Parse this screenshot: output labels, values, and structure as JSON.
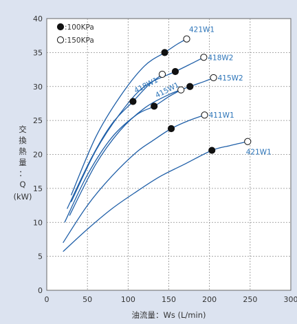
{
  "chart_data": {
    "type": "line",
    "title": "",
    "xlabel": "油流量：Ws (L/min)",
    "ylabel": [
      "交",
      "換",
      "熱",
      "量",
      "：",
      "Q",
      "(kW)"
    ],
    "xlim": [
      0,
      300
    ],
    "ylim": [
      0,
      40
    ],
    "xticks": [
      0,
      50,
      100,
      150,
      200,
      250,
      300
    ],
    "yticks": [
      0,
      5,
      10,
      15,
      20,
      25,
      30,
      35,
      40
    ],
    "grid": true,
    "legend": [
      {
        "marker": "filled",
        "label": ":100KPa"
      },
      {
        "marker": "open",
        "label": ":150KPa"
      }
    ],
    "series": [
      {
        "name": "421W1",
        "label_pos": "top",
        "points": [
          [
            30,
            14.0
          ],
          [
            60,
            22.5
          ],
          [
            90,
            28.5
          ],
          [
            120,
            33.0
          ],
          [
            145,
            35.0
          ],
          [
            160,
            36.2
          ],
          [
            172,
            37.0
          ]
        ],
        "markers": [
          [
            145,
            35.0,
            "filled"
          ],
          [
            172,
            37.0,
            "open"
          ]
        ]
      },
      {
        "name": "418W1",
        "label_pos": "mid",
        "points": [
          [
            25,
            12.0
          ],
          [
            55,
            19.5
          ],
          [
            80,
            24.5
          ],
          [
            106,
            27.8
          ],
          [
            125,
            30.2
          ],
          [
            142,
            31.8
          ]
        ],
        "markers": [
          [
            106,
            27.8,
            "filled"
          ],
          [
            142,
            31.8,
            "open"
          ]
        ]
      },
      {
        "name": "418W2",
        "label_pos": "end",
        "points": [
          [
            30,
            13.0
          ],
          [
            60,
            20.5
          ],
          [
            90,
            26.0
          ],
          [
            120,
            30.0
          ],
          [
            158,
            32.2
          ],
          [
            180,
            33.5
          ],
          [
            193,
            34.3
          ]
        ],
        "markers": [
          [
            158,
            32.2,
            "filled"
          ],
          [
            193,
            34.3,
            "open"
          ]
        ]
      },
      {
        "name": "415W1",
        "label_pos": "mid",
        "points": [
          [
            22,
            10.0
          ],
          [
            50,
            17.0
          ],
          [
            80,
            22.5
          ],
          [
            110,
            25.8
          ],
          [
            132,
            27.1
          ],
          [
            150,
            28.5
          ],
          [
            165,
            29.5
          ]
        ],
        "markers": [
          [
            132,
            27.1,
            "filled"
          ],
          [
            165,
            29.5,
            "open"
          ]
        ]
      },
      {
        "name": "415W2",
        "label_pos": "end",
        "points": [
          [
            28,
            11.0
          ],
          [
            60,
            18.5
          ],
          [
            90,
            23.5
          ],
          [
            120,
            26.8
          ],
          [
            150,
            28.8
          ],
          [
            176,
            30.0
          ],
          [
            195,
            30.8
          ],
          [
            205,
            31.3
          ]
        ],
        "markers": [
          [
            176,
            30.0,
            "filled"
          ],
          [
            205,
            31.3,
            "open"
          ]
        ]
      },
      {
        "name": "411W1",
        "label_pos": "end",
        "points": [
          [
            20,
            7.0
          ],
          [
            50,
            12.5
          ],
          [
            80,
            16.8
          ],
          [
            110,
            20.3
          ],
          [
            130,
            22.0
          ],
          [
            153,
            23.8
          ],
          [
            175,
            25.0
          ],
          [
            194,
            25.8
          ]
        ],
        "markers": [
          [
            153,
            23.8,
            "filled"
          ],
          [
            194,
            25.8,
            "open"
          ]
        ]
      },
      {
        "name": "421W1",
        "label_pos": "below",
        "points": [
          [
            20,
            5.7
          ],
          [
            50,
            9.0
          ],
          [
            80,
            12.0
          ],
          [
            110,
            14.5
          ],
          [
            140,
            16.8
          ],
          [
            170,
            18.6
          ],
          [
            203,
            20.6
          ],
          [
            225,
            21.3
          ],
          [
            247,
            21.9
          ]
        ],
        "markers": [
          [
            203,
            20.6,
            "filled"
          ],
          [
            247,
            21.9,
            "open"
          ]
        ]
      }
    ]
  },
  "colors": {
    "background": "#dce3f0",
    "plot_bg": "#ffffff",
    "curve": "#1f5fa8",
    "label": "#2a73b8",
    "grid": "#8e8e8e",
    "marker": "#111111"
  }
}
